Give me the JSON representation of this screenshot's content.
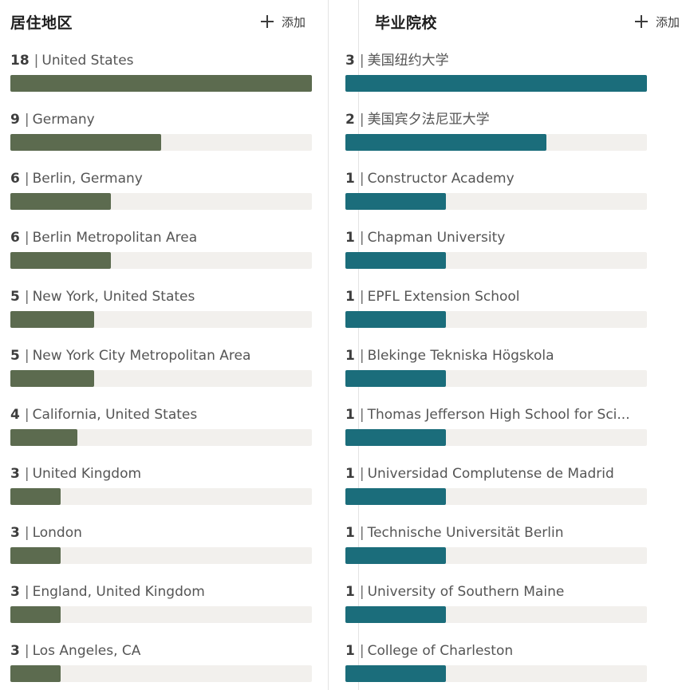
{
  "location_panel": {
    "title": "居住地区",
    "add_label": "添加",
    "accent": "#5c6b4f",
    "max": 18,
    "items": [
      {
        "count": "18",
        "label": "United States",
        "value": 18
      },
      {
        "count": "9",
        "label": "Germany",
        "value": 9
      },
      {
        "count": "6",
        "label": "Berlin, Germany",
        "value": 6
      },
      {
        "count": "6",
        "label": "Berlin Metropolitan Area",
        "value": 6
      },
      {
        "count": "5",
        "label": "New York, United States",
        "value": 5
      },
      {
        "count": "5",
        "label": "New York City Metropolitan Area",
        "value": 5
      },
      {
        "count": "4",
        "label": "California, United States",
        "value": 4
      },
      {
        "count": "3",
        "label": "United Kingdom",
        "value": 3
      },
      {
        "count": "3",
        "label": "London",
        "value": 3
      },
      {
        "count": "3",
        "label": "England, United Kingdom",
        "value": 3
      },
      {
        "count": "3",
        "label": "Los Angeles, CA",
        "value": 3
      }
    ]
  },
  "school_panel": {
    "title": "毕业院校",
    "add_label": "添加",
    "accent": "#1b6d7b",
    "max": 3,
    "items": [
      {
        "count": "3",
        "label": "美国纽约大学",
        "value": 3
      },
      {
        "count": "2",
        "label": "美国宾夕法尼亚大学",
        "value": 2
      },
      {
        "count": "1",
        "label": "Constructor Academy",
        "value": 1
      },
      {
        "count": "1",
        "label": "Chapman University",
        "value": 1
      },
      {
        "count": "1",
        "label": "EPFL Extension School",
        "value": 1
      },
      {
        "count": "1",
        "label": "Blekinge Tekniska Högskola",
        "value": 1
      },
      {
        "count": "1",
        "label": "Thomas Jefferson High School for Sci...",
        "value": 1
      },
      {
        "count": "1",
        "label": "Universidad Complutense de Madrid",
        "value": 1
      },
      {
        "count": "1",
        "label": "Technische Universität Berlin",
        "value": 1
      },
      {
        "count": "1",
        "label": "University of Southern Maine",
        "value": 1
      },
      {
        "count": "1",
        "label": "College of Charleston",
        "value": 1
      }
    ]
  }
}
